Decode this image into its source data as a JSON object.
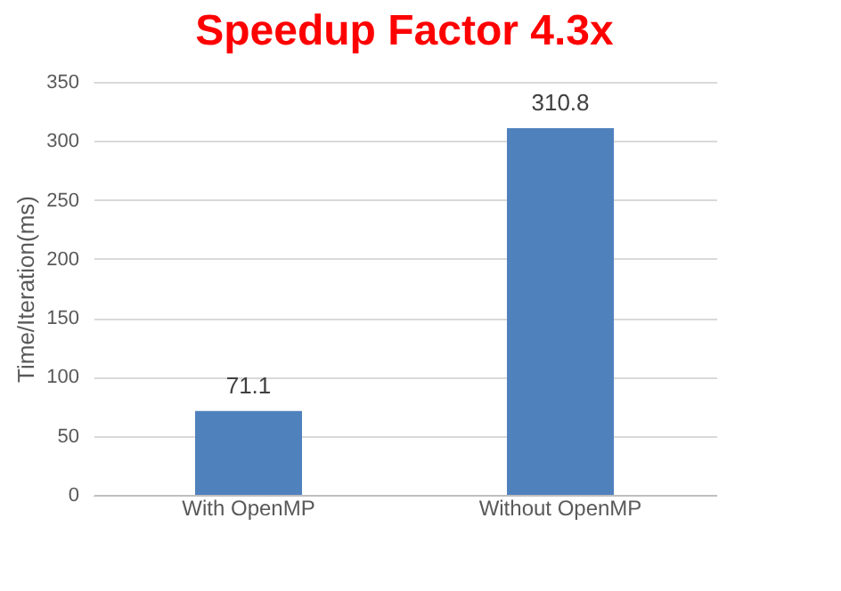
{
  "chart_data": {
    "type": "bar",
    "title": "Speedup Factor 4.3x",
    "categories": [
      "With OpenMP",
      "Without OpenMP"
    ],
    "values": [
      71.1,
      310.8
    ],
    "color": "#4f81bd",
    "ylabel": "Time/Iteration(ms)",
    "ylim": [
      0,
      350
    ],
    "yticks": [
      0,
      50,
      100,
      150,
      200,
      250,
      300,
      350
    ],
    "grid": "y",
    "data_labels": true
  }
}
